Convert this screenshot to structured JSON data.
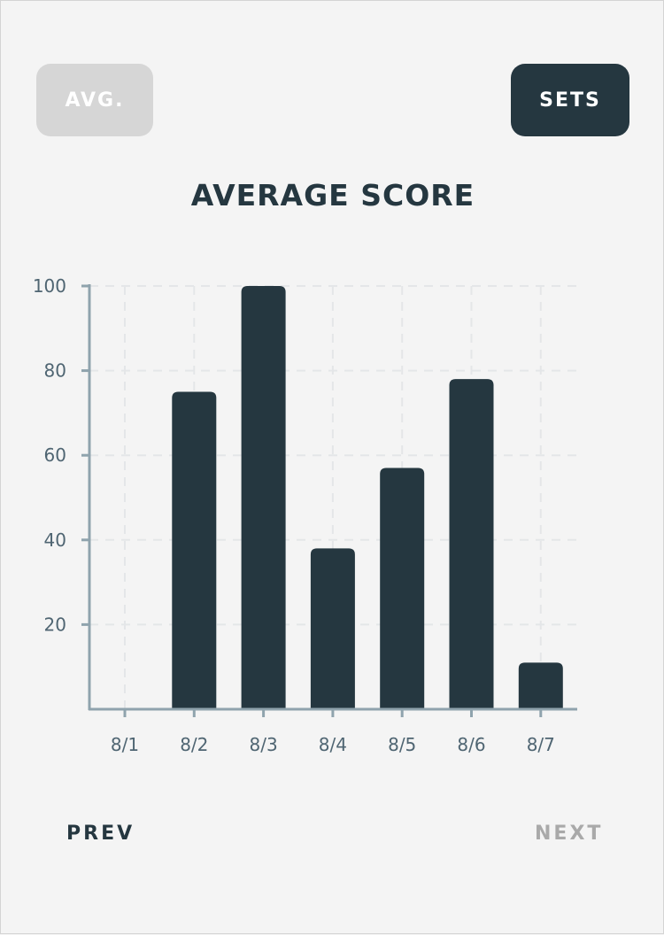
{
  "buttons": {
    "avg_label": "AVG.",
    "sets_label": "SETS"
  },
  "nav": {
    "prev_label": "PREV",
    "next_label": "NEXT"
  },
  "colors": {
    "bar": "#253740",
    "axis": "#8fa3ad",
    "grid": "#e4e6e8",
    "tick_text": "#4f6572",
    "background": "#f4f4f4"
  },
  "chart_data": {
    "type": "bar",
    "title": "AVERAGE SCORE",
    "categories": [
      "8/1",
      "8/2",
      "8/3",
      "8/4",
      "8/5",
      "8/6",
      "8/7"
    ],
    "values": [
      0,
      75,
      100,
      38,
      57,
      78,
      11
    ],
    "ylim": [
      0,
      100
    ],
    "yticks": [
      20,
      40,
      60,
      80,
      100
    ],
    "xlabel": "",
    "ylabel": "",
    "grid": true,
    "legend": "none"
  }
}
